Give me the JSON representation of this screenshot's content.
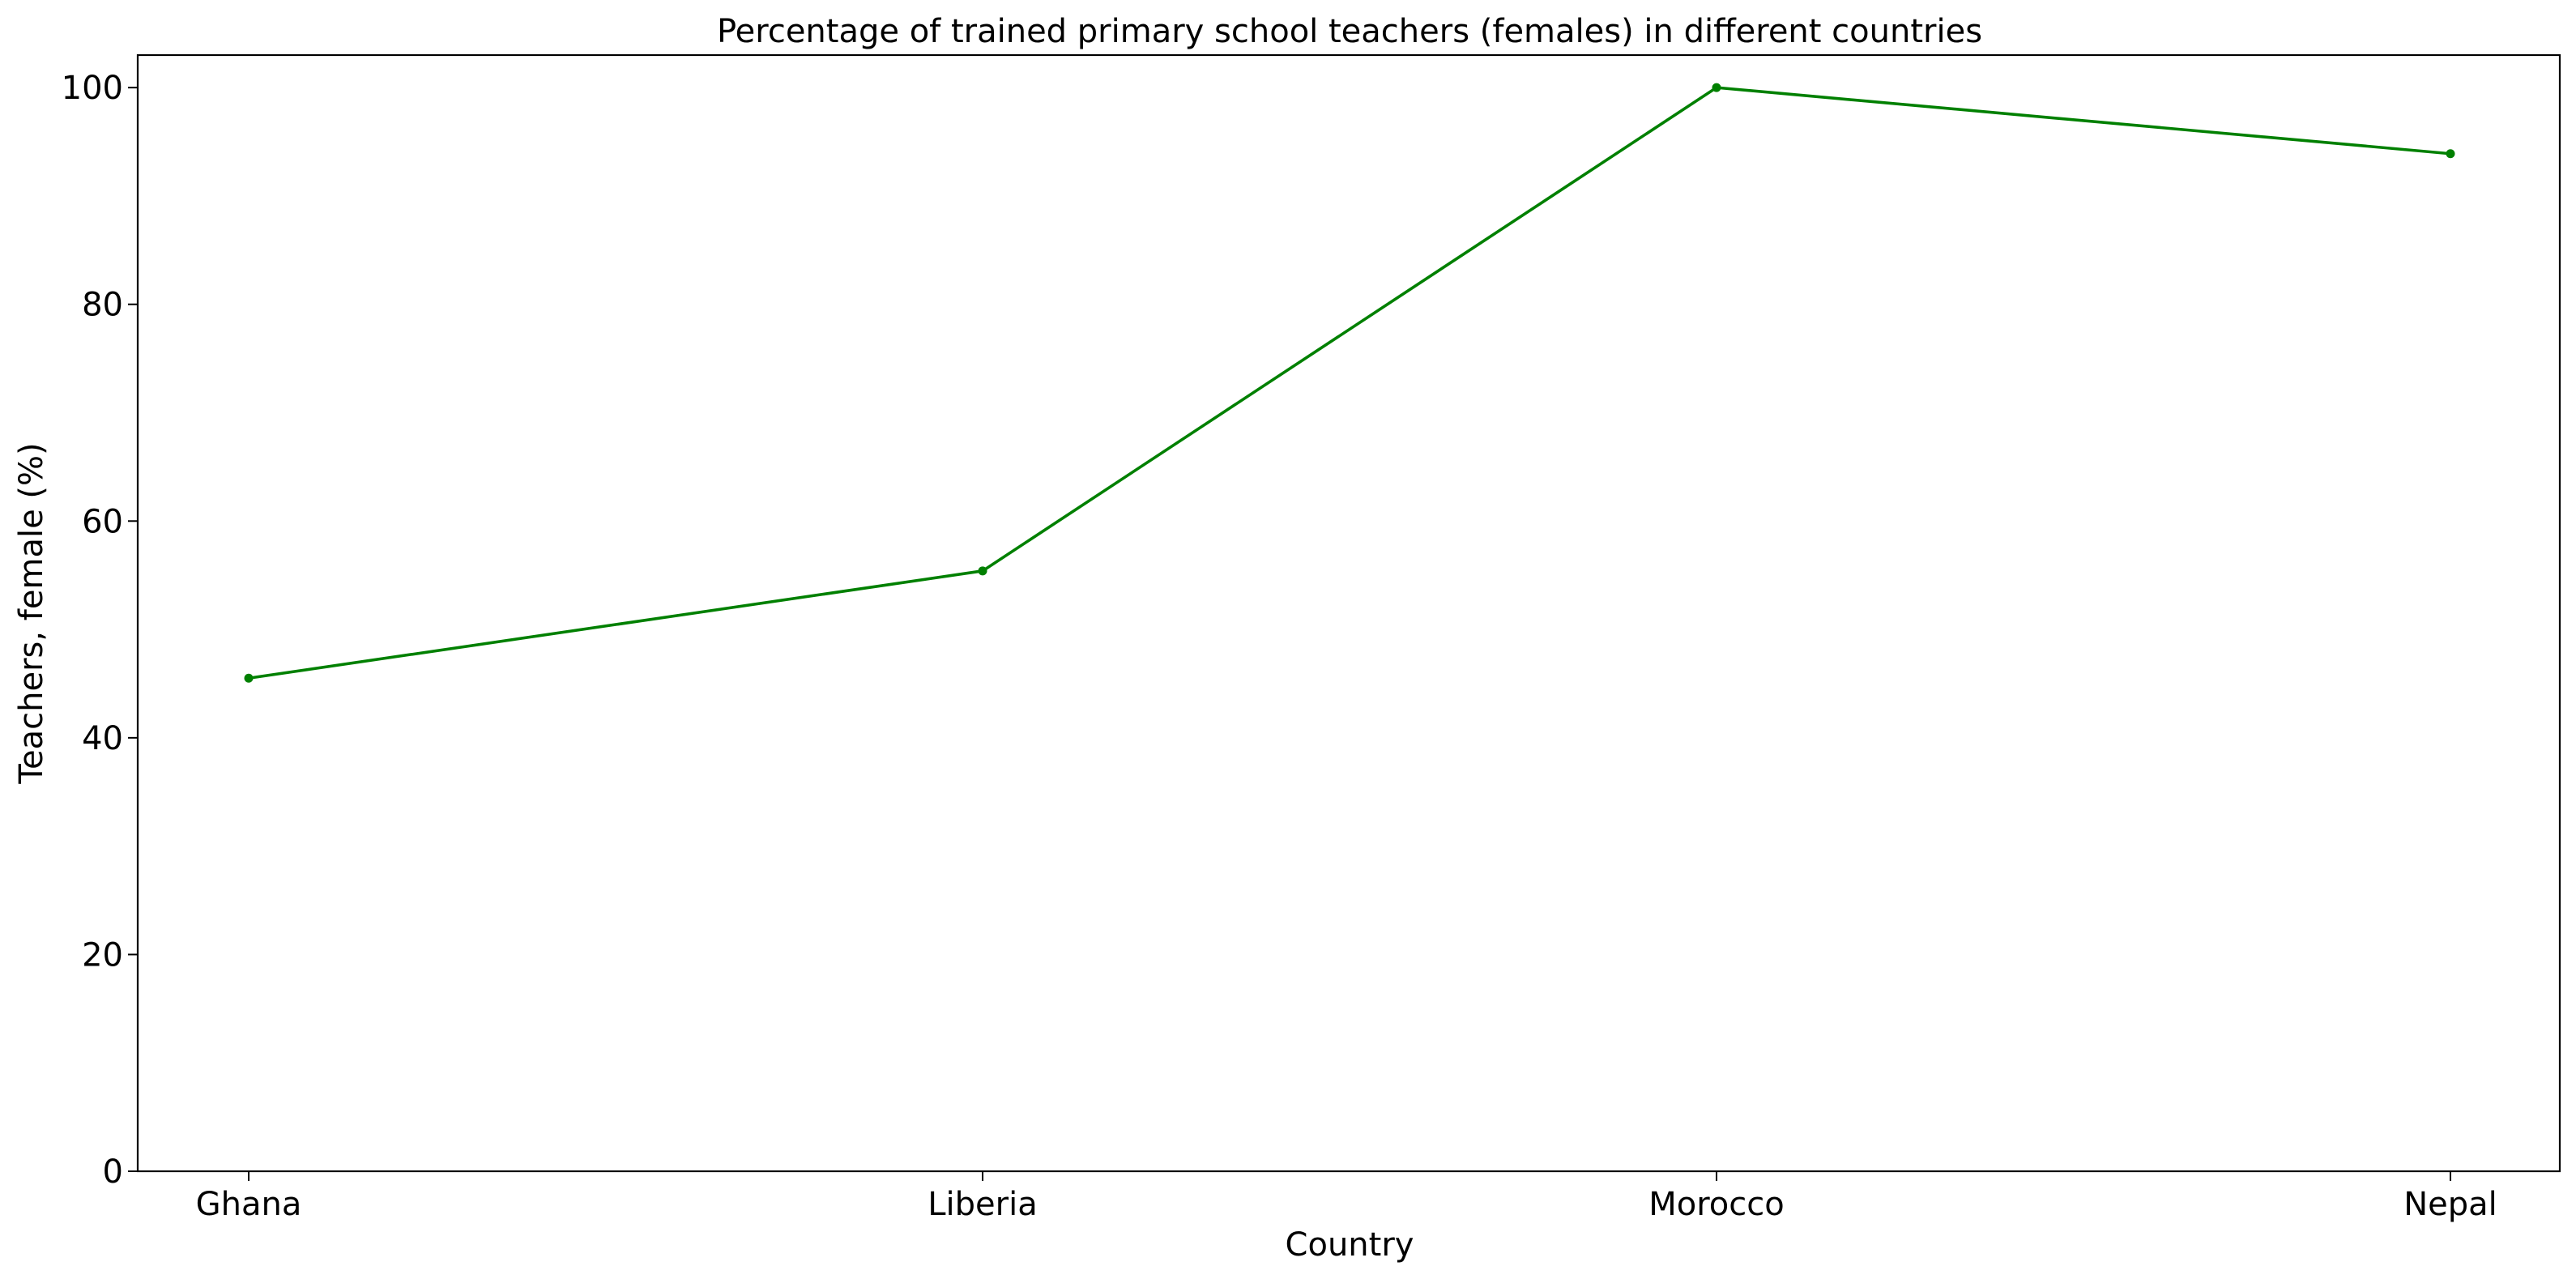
{
  "chart_data": {
    "type": "line",
    "title": "Percentage of trained primary school teachers (females) in different countries",
    "xlabel": "Country",
    "ylabel": "Teachers, female (%)",
    "categories": [
      "Ghana",
      "Liberia",
      "Morocco",
      "Nepal"
    ],
    "series": [
      {
        "values": [
          45.5,
          55.4,
          100.0,
          93.9
        ],
        "color": "#008000",
        "marker": "circle"
      }
    ],
    "ylim": [
      0,
      103
    ],
    "yticks": [
      0,
      20,
      40,
      60,
      80,
      100
    ],
    "grid": false,
    "legend": "none"
  }
}
